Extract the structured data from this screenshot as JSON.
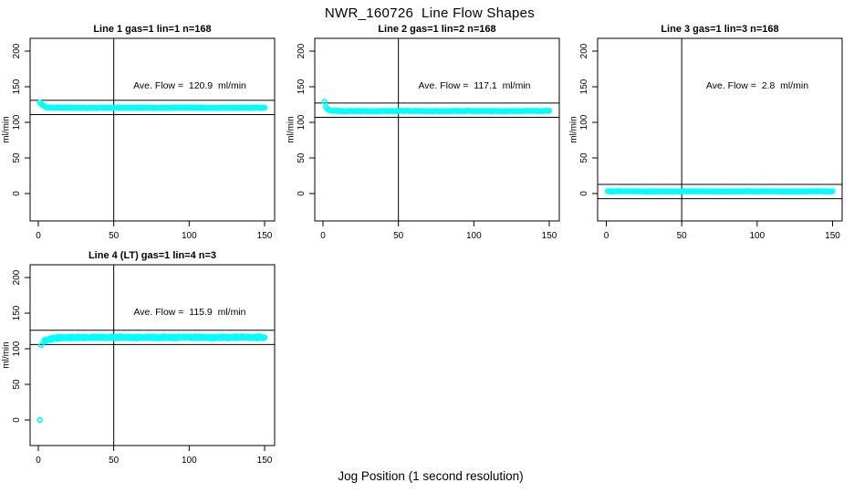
{
  "main": {
    "title": "NWR_160726  Line Flow Shapes",
    "xlabel": "Jog Position (1 second resolution)"
  },
  "colors": {
    "points": "#00FFFF",
    "axis": "#000000",
    "background": "#FFFFFF"
  },
  "chart_data": [
    {
      "type": "scatter",
      "title": "Line 1 gas=1 lin=1 n=168",
      "annotation": "Ave. Flow =  120.9  ml/min",
      "ave_flow": 120.9,
      "n": 168,
      "ylabel": "ml/min",
      "x_ticks": [
        0,
        50,
        100,
        150
      ],
      "y_ticks": [
        0,
        50,
        100,
        150,
        200
      ],
      "x_range": [
        0,
        150
      ],
      "y_range": [
        0,
        200
      ],
      "vline_x": 50,
      "ref_lines": [
        130.9,
        110.9
      ],
      "series": {
        "x_start": 1,
        "x_end": 150,
        "start_value": 128.5,
        "steady_value": 120.5,
        "decay": 2,
        "spread": 0.5,
        "passes": 1,
        "outliers": []
      }
    },
    {
      "type": "scatter",
      "title": "Line 2 gas=1 lin=2 n=168",
      "annotation": "Ave. Flow =  117.1  ml/min",
      "ave_flow": 117.1,
      "n": 168,
      "ylabel": "ml/min",
      "x_ticks": [
        0,
        50,
        100,
        150
      ],
      "y_ticks": [
        0,
        50,
        100,
        150,
        200
      ],
      "x_range": [
        0,
        150
      ],
      "y_range": [
        0,
        200
      ],
      "vline_x": 50,
      "ref_lines": [
        127.1,
        107.1
      ],
      "series": {
        "x_start": 1,
        "x_end": 150,
        "start_value": 129,
        "steady_value": 115.8,
        "decay": 1.3,
        "spread": 0.5,
        "passes": 1,
        "outliers": []
      }
    },
    {
      "type": "scatter",
      "title": "Line 3 gas=1 lin=3 n=168",
      "annotation": "Ave. Flow =  2.8  ml/min",
      "ave_flow": 2.8,
      "n": 168,
      "ylabel": "ml/min",
      "x_ticks": [
        0,
        50,
        100,
        150
      ],
      "y_ticks": [
        0,
        50,
        100,
        150,
        200
      ],
      "x_range": [
        0,
        150
      ],
      "y_range": [
        0,
        200
      ],
      "vline_x": 50,
      "ref_lines": [
        12.8,
        -7.2
      ],
      "series": {
        "x_start": 1,
        "x_end": 150,
        "start_value": 3.2,
        "steady_value": 3.0,
        "decay": 1,
        "spread": 0.3,
        "passes": 1,
        "outliers": []
      }
    },
    {
      "type": "scatter",
      "title": "Line 4 (LT) gas=1 lin=4 n=3",
      "annotation": "Ave. Flow =  115.9  ml/min",
      "ave_flow": 115.9,
      "n": 3,
      "ylabel": "ml/min",
      "x_ticks": [
        0,
        50,
        100,
        150
      ],
      "y_ticks": [
        0,
        50,
        100,
        150,
        200
      ],
      "x_range": [
        0,
        150
      ],
      "y_range": [
        0,
        200
      ],
      "vline_x": 50,
      "ref_lines": [
        125.9,
        105.9
      ],
      "series": {
        "x_start": 4,
        "x_end": 150,
        "start_value": 111,
        "steady_value": 116,
        "decay": 5,
        "spread": 1.2,
        "passes": 3,
        "outliers": [
          {
            "x": 1,
            "y": 0
          },
          {
            "x": 2,
            "y": 105
          }
        ]
      }
    }
  ]
}
